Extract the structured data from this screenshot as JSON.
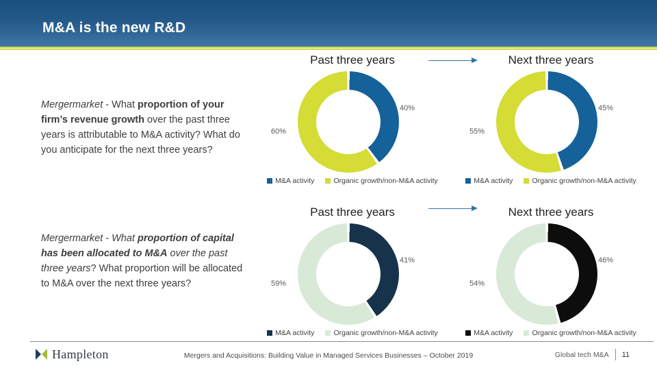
{
  "slide": {
    "title": "M&A is the new R&D",
    "footer": {
      "logo_text": "Hampleton",
      "center_text": "Mergers and Acquisitions: Building Value in Managed Services Businesses – October 2019",
      "section_label": "Global tech M&A",
      "page_number": "11"
    }
  },
  "questions": [
    {
      "runs": [
        {
          "text": "Mergermarket",
          "bold": false,
          "italic": true
        },
        {
          "text": " - What ",
          "bold": false,
          "italic": false
        },
        {
          "text": "proportion of your firm’s revenue growth",
          "bold": true,
          "italic": false
        },
        {
          "text": " over the past three years is attributable to M&A activity? What do you anticipate for the next three years?",
          "bold": false,
          "italic": false
        }
      ]
    },
    {
      "runs": [
        {
          "text": "Mergermarket - What ",
          "bold": false,
          "italic": true
        },
        {
          "text": "proportion of capital has been allocated to M&A",
          "bold": true,
          "italic": true
        },
        {
          "text": " over the past three years",
          "bold": false,
          "italic": true
        },
        {
          "text": "? What proportion will be allocated to M&A over the next three years?",
          "bold": false,
          "italic": false
        }
      ]
    }
  ],
  "chart_data": [
    {
      "type": "pie",
      "subtype": "donut",
      "title": "Past three years",
      "legend_position": "bottom",
      "start_angle_deg": 0,
      "series": [
        {
          "name": "M&A activity",
          "value": 40,
          "label": "40%",
          "color": "#15619a"
        },
        {
          "name": "Organic growth/non-M&A activity",
          "value": 60,
          "label": "60%",
          "color": "#d4dc35"
        }
      ]
    },
    {
      "type": "pie",
      "subtype": "donut",
      "title": "Next three years",
      "legend_position": "bottom",
      "start_angle_deg": 0,
      "series": [
        {
          "name": "M&A activity",
          "value": 45,
          "label": "45%",
          "color": "#15619a"
        },
        {
          "name": "Organic growth/non-M&A activity",
          "value": 55,
          "label": "55%",
          "color": "#d4dc35"
        }
      ]
    },
    {
      "type": "pie",
      "subtype": "donut",
      "title": "Past three years",
      "legend_position": "bottom",
      "start_angle_deg": 0,
      "series": [
        {
          "name": "M&A activity",
          "value": 41,
          "label": "41%",
          "color": "#16334b"
        },
        {
          "name": "Organic growth/non-M&A activity",
          "value": 59,
          "label": "59%",
          "color": "#d8e9d8"
        }
      ]
    },
    {
      "type": "pie",
      "subtype": "donut",
      "title": "Next three years",
      "legend_position": "bottom",
      "start_angle_deg": 0,
      "series": [
        {
          "name": "M&A activity",
          "value": 46,
          "label": "46%",
          "color": "#0d0d0d"
        },
        {
          "name": "Organic growth/non-M&A activity",
          "value": 54,
          "label": "54%",
          "color": "#d8e9d8"
        }
      ]
    }
  ]
}
